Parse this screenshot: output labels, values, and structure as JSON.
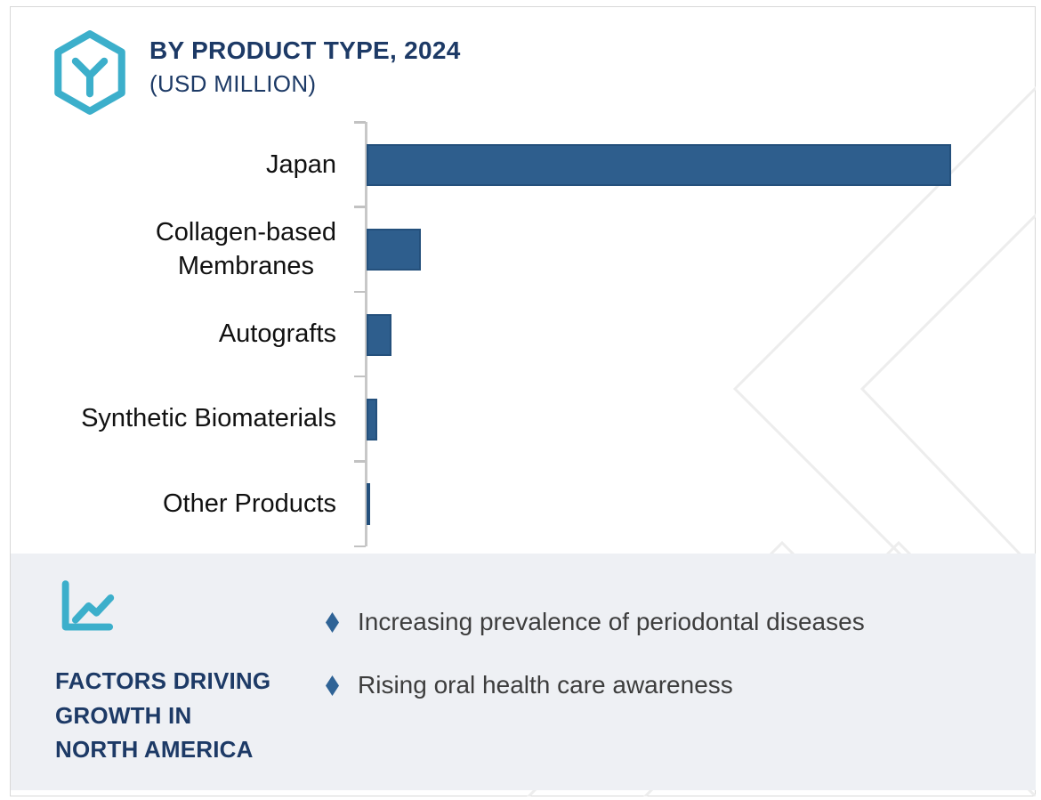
{
  "header": {
    "logo_icon": "hexagon-y-logo-icon",
    "title": "BY PRODUCT TYPE, 2024",
    "subtitle": "(USD MILLION)"
  },
  "chart_data": {
    "type": "bar",
    "orientation": "horizontal",
    "title": "BY PRODUCT TYPE, 2024",
    "units": "USD Million",
    "categories": [
      "Japan",
      "Collagen-based Membranes",
      "Autografts",
      "Synthetic Biomaterials",
      "Other Products"
    ],
    "category_lines": [
      [
        "Japan"
      ],
      [
        "Collagen-based",
        "Membranes"
      ],
      [
        "Autografts"
      ],
      [
        "Synthetic Biomaterials"
      ],
      [
        "Other Products"
      ]
    ],
    "values": [
      100,
      9.3,
      4.3,
      1.8,
      0.6
    ],
    "value_scale_note": "Relative scale estimated from bar lengths; no numeric axis labels are shown in the image",
    "xlabel": "",
    "ylabel": "",
    "grid": false,
    "legend": false
  },
  "factors_panel": {
    "icon": "line-chart-icon",
    "heading_lines": [
      "FACTORS DRIVING",
      "GROWTH IN",
      "NORTH AMERICA"
    ],
    "bullets": [
      {
        "icon": "diamond-bullet-icon",
        "text": "Increasing prevalence of periodontal diseases"
      },
      {
        "icon": "diamond-bullet-icon",
        "text": "Rising oral health care awareness"
      }
    ]
  },
  "colors": {
    "navy": "#1d3a66",
    "teal": "#3cafcb",
    "bar_fill": "#2e5e8d",
    "bar_border": "#24507c",
    "bullet_blue": "#2f6396",
    "panel_bg": "#eef0f4",
    "axis_line": "#c8c8c8",
    "tick": "#c2c2c2",
    "watermark_line": "#ededed",
    "label_text": "#111111",
    "bullet_text": "#3d3d3d",
    "card_border": "#d8d8d8",
    "background": "#ffffff"
  }
}
